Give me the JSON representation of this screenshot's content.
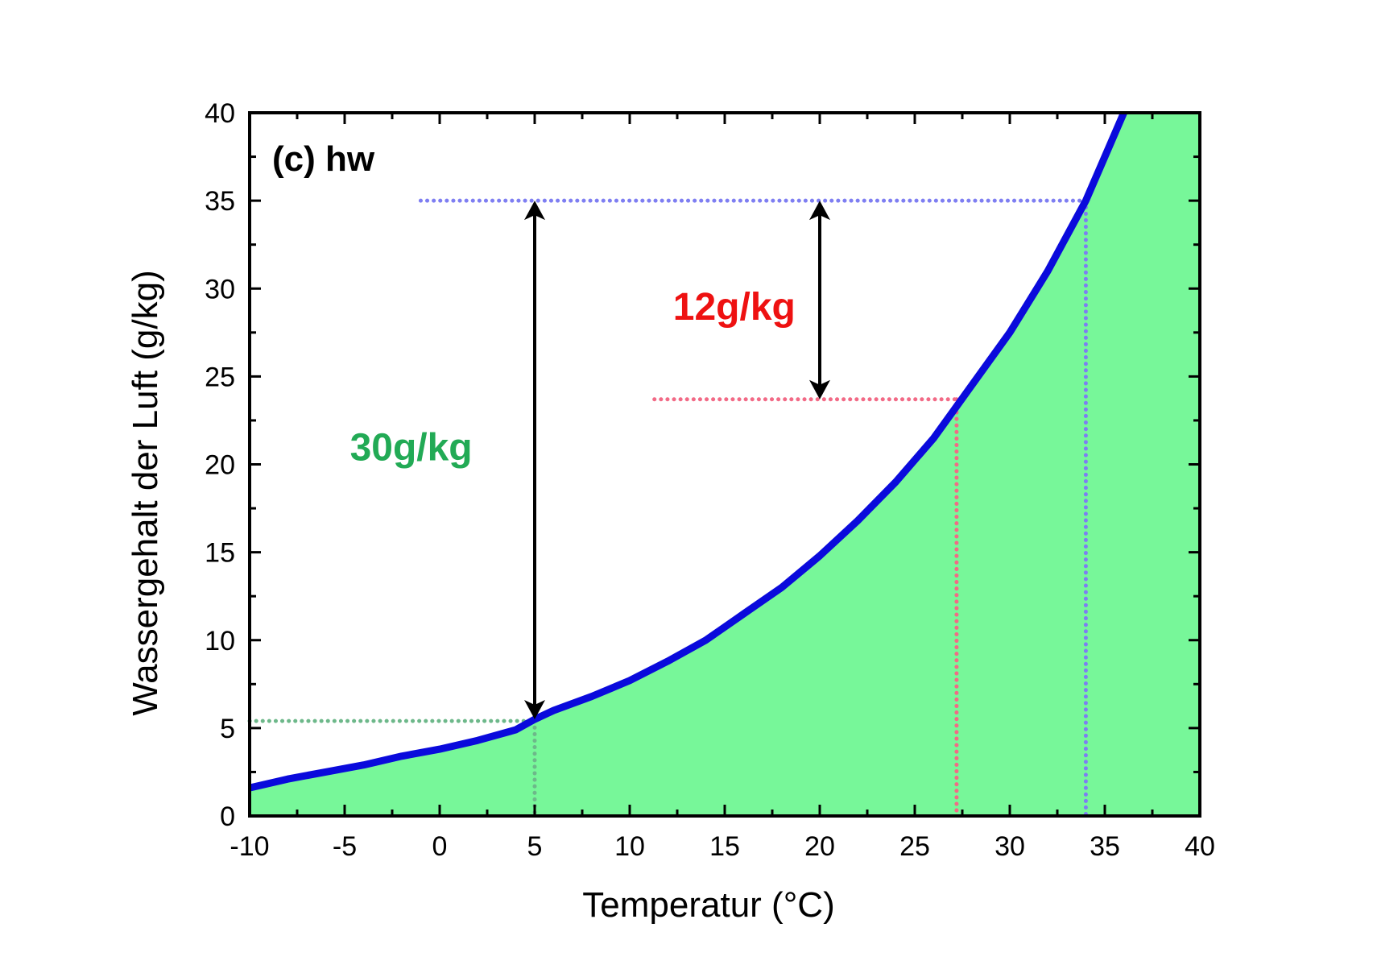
{
  "chart_data": {
    "type": "area",
    "panel_label": "(c) hw",
    "xlabel": "Temperatur  (°C)",
    "ylabel": "Wassergehalt der Luft (g/kg)",
    "xlim": [
      -10,
      40
    ],
    "ylim": [
      0,
      40
    ],
    "x_ticks": [
      "-10",
      "-5",
      "0",
      "5",
      "10",
      "15",
      "20",
      "25",
      "30",
      "35",
      "40"
    ],
    "y_ticks": [
      "0",
      "5",
      "10",
      "15",
      "20",
      "25",
      "30",
      "35",
      "40"
    ],
    "grid": false,
    "fill_color": "#77F799",
    "curve_color": "#0A0ADC",
    "saturation_curve": {
      "x": [
        -10,
        -8,
        -6,
        -4,
        -2,
        0,
        2,
        4,
        5,
        6,
        8,
        10,
        12,
        14,
        16,
        18,
        20,
        22,
        24,
        26,
        28,
        30,
        32,
        34,
        35,
        36
      ],
      "y": [
        1.6,
        2.1,
        2.5,
        2.9,
        3.4,
        3.8,
        4.3,
        4.9,
        5.5,
        6.0,
        6.8,
        7.7,
        8.8,
        10.0,
        11.5,
        13.0,
        14.8,
        16.8,
        19.0,
        21.5,
        24.5,
        27.5,
        31.0,
        35.0,
        37.5,
        40.0
      ]
    },
    "reference_lines": [
      {
        "color": "#7E7EF2",
        "y": 35.0,
        "x_from": -1,
        "x_to": 34,
        "drop_x": 34
      },
      {
        "color": "#F26A86",
        "y": 23.7,
        "x_from": 11.3,
        "x_to": 27.2,
        "drop_x": 27.2
      },
      {
        "color": "#6DB88A",
        "y": 5.4,
        "x_from": -10,
        "x_to": 5,
        "drop_x": 5
      }
    ],
    "arrows": [
      {
        "x": 5,
        "y_from": 5.5,
        "y_to": 35.0
      },
      {
        "x": 20,
        "y_from": 23.7,
        "y_to": 35.0
      }
    ],
    "annotations": [
      {
        "text": "30g/kg",
        "color": "#22AA55",
        "x": -1.5,
        "y": 21.0
      },
      {
        "text": "12g/kg",
        "color": "#EE1111",
        "x": 15.5,
        "y": 29.0
      }
    ]
  }
}
